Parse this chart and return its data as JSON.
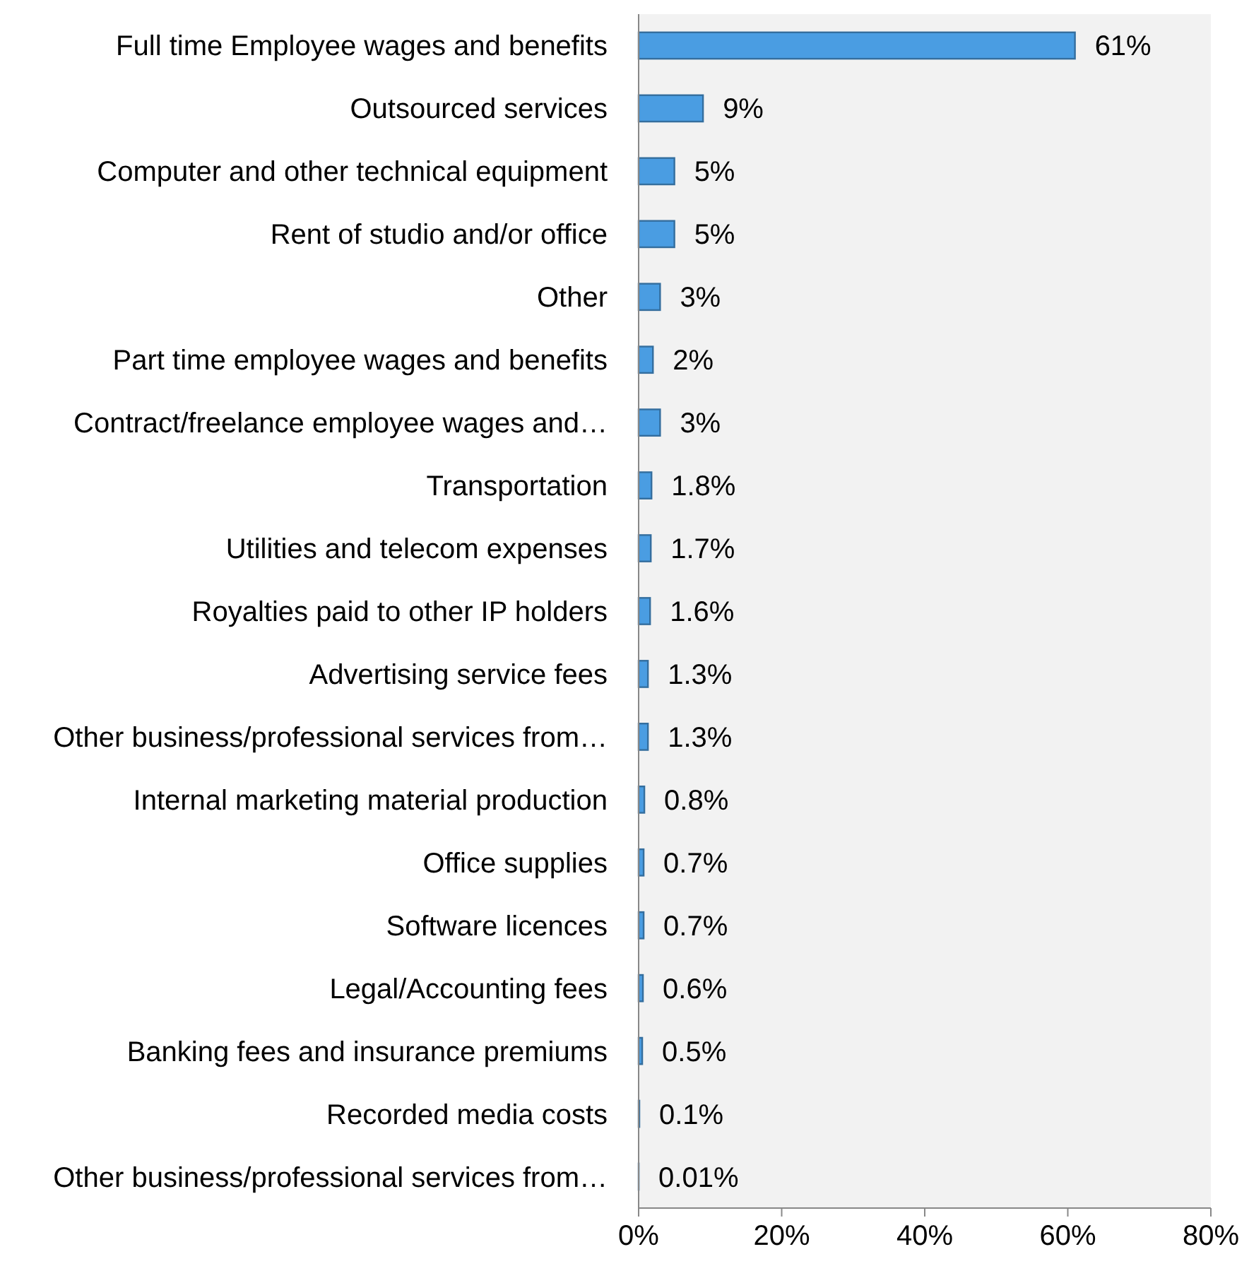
{
  "chart_data": {
    "type": "bar",
    "orientation": "horizontal",
    "categories": [
      "Full time Employee wages and benefits",
      "Outsourced services",
      "Computer and other technical equipment",
      "Rent of studio and/or office",
      "Other",
      "Part time employee wages and benefits",
      "Contract/freelance employee wages and…",
      "Transportation",
      "Utilities and telecom expenses",
      "Royalties paid to other IP holders",
      "Advertising service fees",
      "Other business/professional services from…",
      "Internal marketing material production",
      "Office supplies",
      "Software licences",
      "Legal/Accounting fees",
      "Banking fees and insurance premiums",
      "Recorded media costs",
      "Other business/professional services from…"
    ],
    "values": [
      61,
      9,
      5,
      5,
      3,
      2,
      3,
      1.8,
      1.7,
      1.6,
      1.3,
      1.3,
      0.8,
      0.7,
      0.7,
      0.6,
      0.5,
      0.1,
      0.01
    ],
    "value_labels": [
      "61%",
      "9%",
      "5%",
      "5%",
      "3%",
      "2%",
      "3%",
      "1.8%",
      "1.7%",
      "1.6%",
      "1.3%",
      "1.3%",
      "0.8%",
      "0.7%",
      "0.7%",
      "0.6%",
      "0.5%",
      "0.1%",
      "0.01%"
    ],
    "color": "#4a9de2",
    "xlim": [
      0,
      80
    ],
    "xticks": [
      {
        "value": 0,
        "label": "0%"
      },
      {
        "value": 20,
        "label": "20%"
      },
      {
        "value": 40,
        "label": "40%"
      },
      {
        "value": 60,
        "label": "60%"
      },
      {
        "value": 80,
        "label": "80%"
      }
    ]
  }
}
